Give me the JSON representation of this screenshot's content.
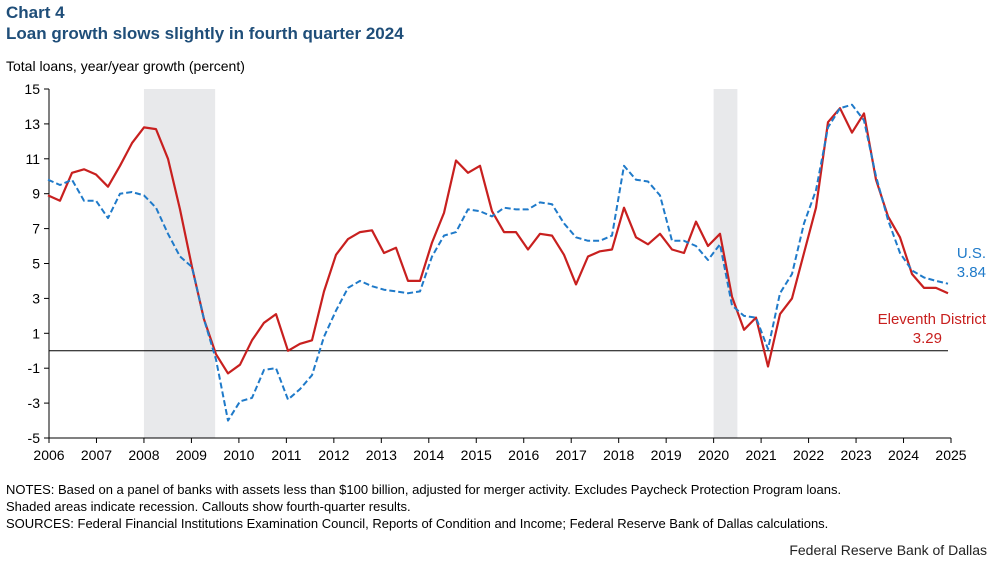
{
  "header": {
    "chart_number": "Chart 4",
    "title": "Loan growth slows slightly in fourth quarter 2024"
  },
  "notes": {
    "line1": "NOTES: Based on a panel of banks with assets less than $100 billion, adjusted for merger activity. Excludes Paycheck Protection Program loans.",
    "line2": "Shaded areas indicate recession. Callouts show fourth-quarter results.",
    "line3": "SOURCES: Federal Financial Institutions Examination Council, Reports of Condition and Income; Federal Reserve Bank of Dallas calculations."
  },
  "credit": "Federal Reserve Bank of Dallas",
  "chart_data": {
    "type": "line",
    "title": "Loan growth slows slightly in fourth quarter 2024",
    "ylabel": "Total loans, year/year growth (percent)",
    "xlabel": "",
    "ylim": [
      -5,
      15
    ],
    "yticks": [
      "15",
      "13",
      "11",
      "9",
      "7",
      "5",
      "3",
      "1",
      "-1",
      "-3",
      "-5"
    ],
    "xlim": [
      2006,
      2025
    ],
    "xticks": [
      "2006",
      "2007",
      "2008",
      "2009",
      "2010",
      "2011",
      "2012",
      "2013",
      "2014",
      "2015",
      "2016",
      "2017",
      "2018",
      "2019",
      "2020",
      "2021",
      "2022",
      "2023",
      "2024",
      "2025"
    ],
    "frequency": "quarterly",
    "start": "2006Q1",
    "end": "2024Q4",
    "grid": false,
    "reference_line": 0,
    "recessions": [
      [
        2008.0,
        2009.5
      ],
      [
        2020.0,
        2020.5
      ]
    ],
    "series": [
      {
        "name": "U.S.",
        "callout": "3.84",
        "color": "#1f7ac9",
        "style": "dashed",
        "values": [
          9.8,
          9.5,
          9.8,
          8.6,
          8.6,
          7.6,
          9.0,
          9.1,
          8.9,
          8.2,
          6.7,
          5.4,
          4.8,
          1.8,
          -0.5,
          -4.0,
          -2.9,
          -2.7,
          -1.1,
          -1.0,
          -2.8,
          -2.2,
          -1.4,
          0.8,
          2.3,
          3.6,
          4.0,
          3.7,
          3.5,
          3.4,
          3.3,
          3.4,
          5.4,
          6.6,
          6.8,
          8.1,
          8.0,
          7.7,
          8.2,
          8.1,
          8.1,
          8.5,
          8.4,
          7.3,
          6.5,
          6.3,
          6.3,
          6.6,
          10.6,
          9.8,
          9.7,
          8.9,
          6.3,
          6.3,
          6.0,
          5.2,
          6.1,
          2.6,
          2.0,
          1.9,
          0.1,
          3.3,
          4.4,
          7.3,
          9.2,
          12.8,
          13.9,
          14.1,
          13.2,
          10.0,
          7.5,
          5.6,
          4.6,
          4.2,
          4.0,
          3.84
        ]
      },
      {
        "name": "Eleventh District",
        "callout": "3.29",
        "color": "#c8201f",
        "style": "solid",
        "values": [
          8.9,
          8.6,
          10.2,
          10.4,
          10.1,
          9.4,
          10.6,
          11.9,
          12.8,
          12.7,
          11.0,
          8.1,
          4.8,
          1.8,
          -0.2,
          -1.3,
          -0.8,
          0.6,
          1.6,
          2.1,
          0.0,
          0.4,
          0.6,
          3.4,
          5.5,
          6.4,
          6.8,
          6.9,
          5.6,
          5.9,
          4.0,
          4.0,
          6.2,
          7.9,
          10.9,
          10.2,
          10.6,
          8.0,
          6.8,
          6.8,
          5.8,
          6.7,
          6.6,
          5.5,
          3.8,
          5.4,
          5.7,
          5.8,
          8.2,
          6.5,
          6.1,
          6.7,
          5.8,
          5.6,
          7.4,
          6.0,
          6.7,
          3.1,
          1.2,
          1.9,
          -0.9,
          2.1,
          3.0,
          5.6,
          8.2,
          13.1,
          13.9,
          12.5,
          13.6,
          9.8,
          7.7,
          6.5,
          4.4,
          3.6,
          3.6,
          3.29
        ]
      }
    ]
  }
}
